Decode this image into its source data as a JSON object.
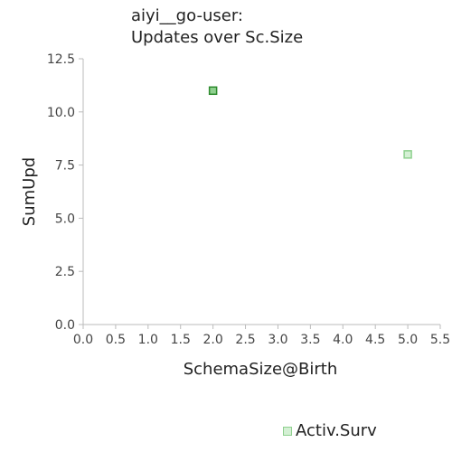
{
  "chart_data": {
    "type": "scatter",
    "title_line1": "aiyi__go-user:",
    "title_line2": "Updates over Sc.Size",
    "xlabel": "SchemaSize@Birth",
    "ylabel": "SumUpd",
    "xlim": [
      0,
      5.5
    ],
    "ylim": [
      0,
      12.5
    ],
    "x_ticks": [
      "0.0",
      "0.5",
      "1.0",
      "1.5",
      "2.0",
      "2.5",
      "3.0",
      "3.5",
      "4.0",
      "4.5",
      "5.0",
      "5.5"
    ],
    "y_ticks": [
      "0.0",
      "2.5",
      "5.0",
      "7.5",
      "10.0",
      "12.5"
    ],
    "grid": false,
    "legend_position": "bottom-center",
    "series": [
      {
        "name": "Activ.Surv",
        "points": [
          {
            "x": 2.0,
            "y": 11,
            "highlight": true
          },
          {
            "x": 5.0,
            "y": 8,
            "highlight": false
          }
        ]
      }
    ],
    "colors": {
      "marker_fill": "#d4f0d4",
      "marker_stroke": "#8fd08f",
      "marker_fill_highlight": "#8fd08f",
      "marker_stroke_highlight": "#2e8b2e",
      "axis": "#bbbbbb"
    }
  }
}
